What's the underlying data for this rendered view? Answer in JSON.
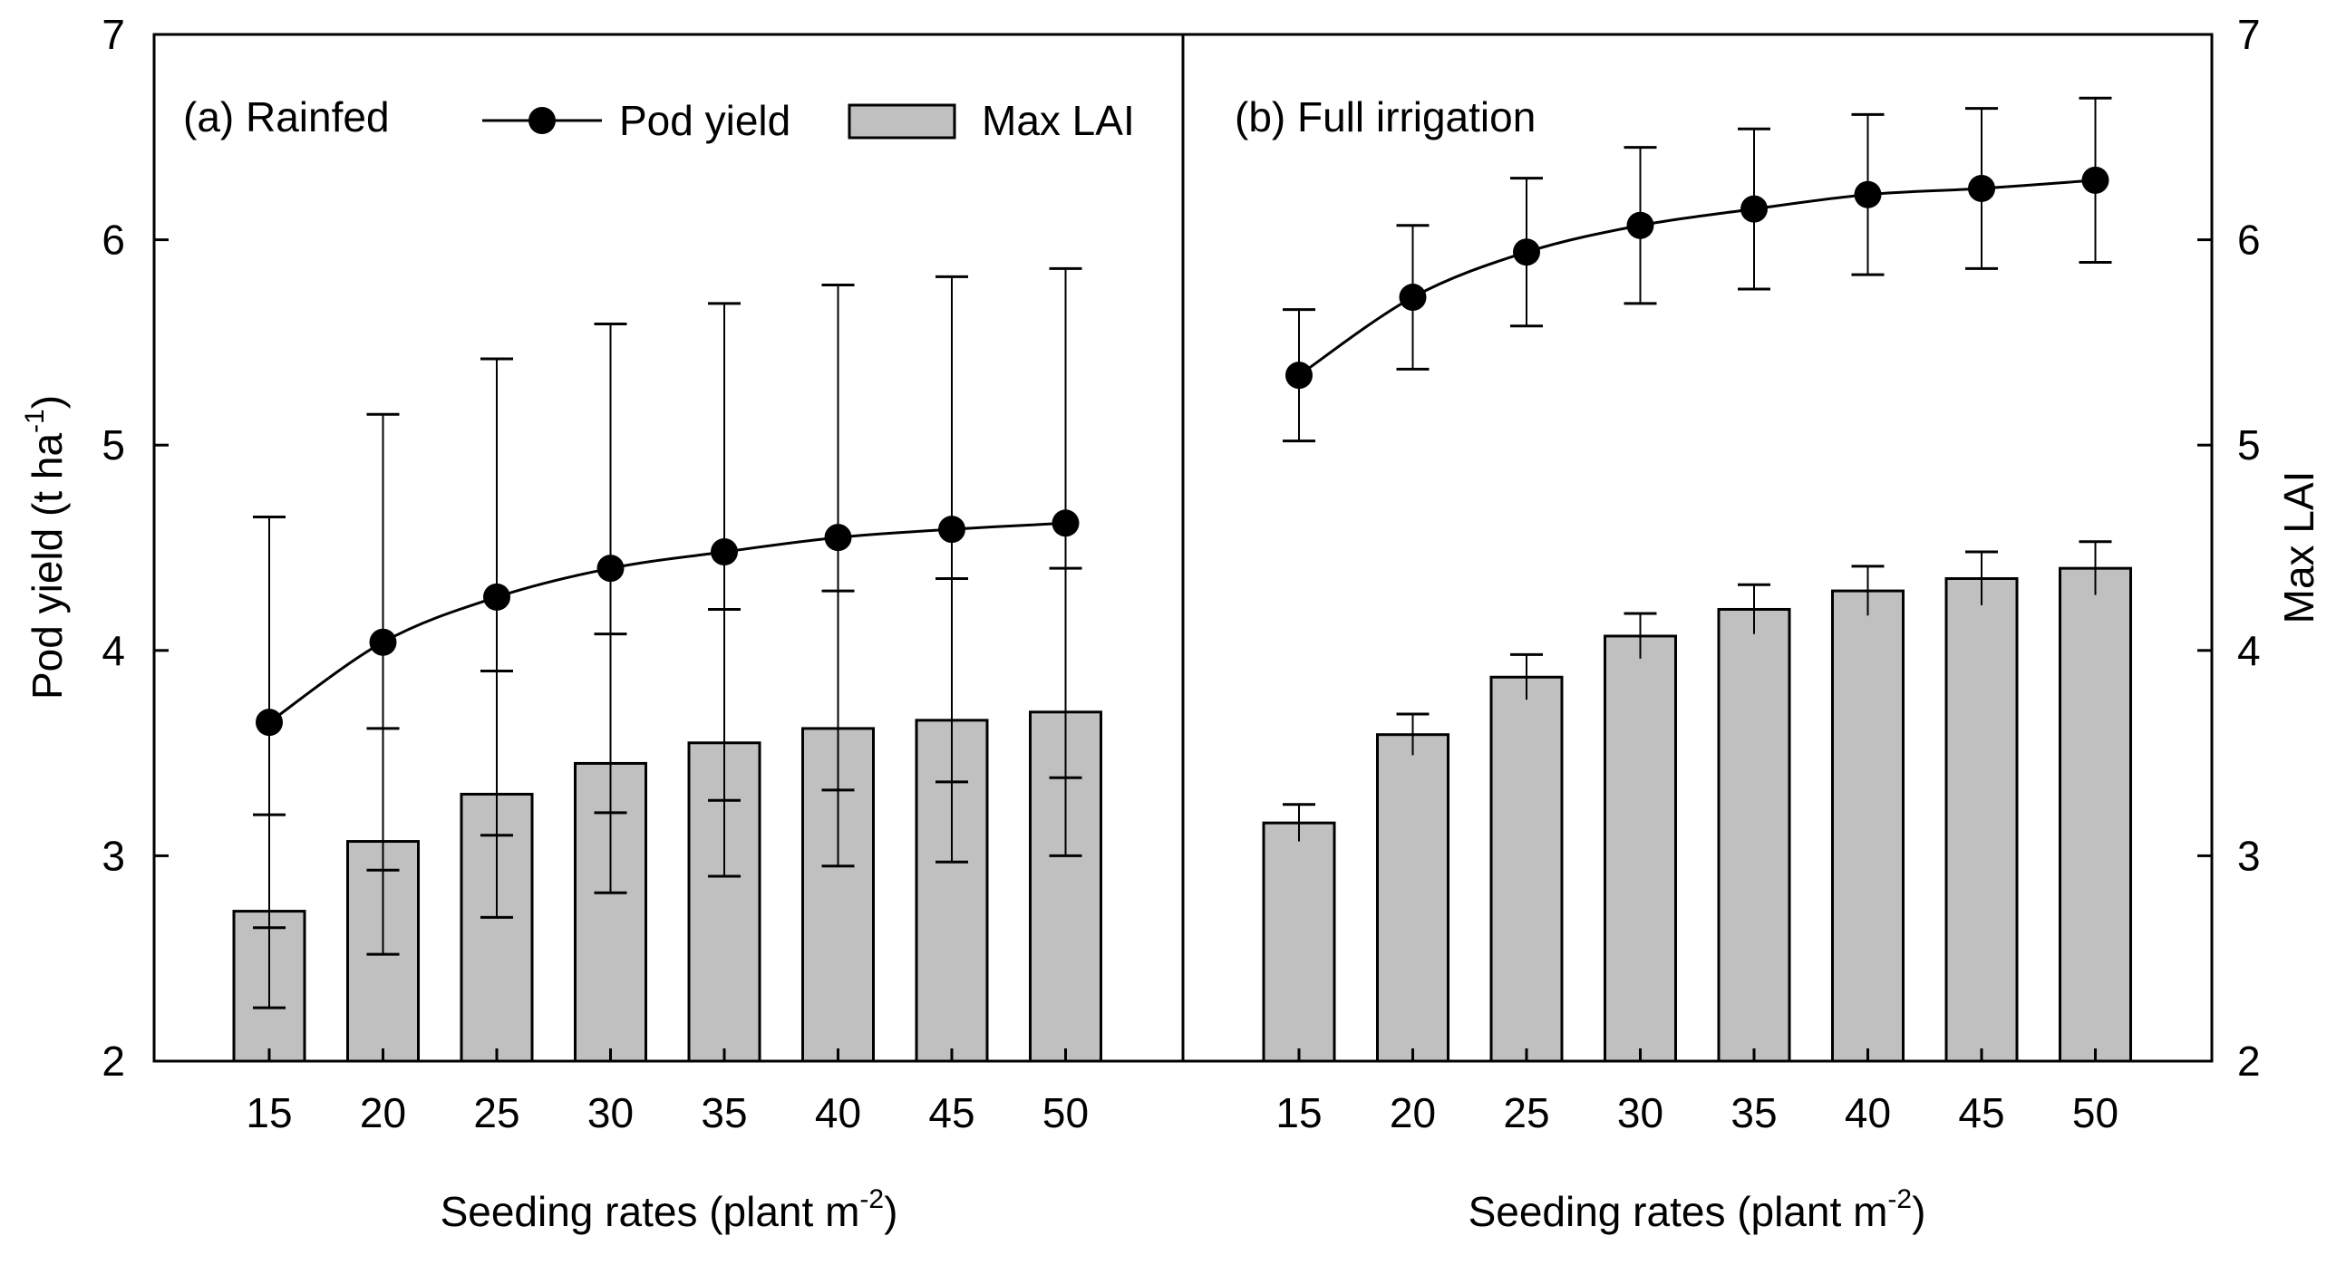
{
  "chart_data": [
    {
      "type": "bar+line",
      "panel_label": "(a) Rainfed",
      "categories": [
        "15",
        "20",
        "25",
        "30",
        "35",
        "40",
        "45",
        "50"
      ],
      "series": [
        {
          "name": "Pod yield",
          "kind": "line",
          "axis": "left",
          "values": [
            3.65,
            4.04,
            4.26,
            4.4,
            4.48,
            4.55,
            4.59,
            4.62
          ],
          "error": [
            1.0,
            1.11,
            1.16,
            1.19,
            1.21,
            1.23,
            1.23,
            1.24
          ]
        },
        {
          "name": "Max LAI",
          "kind": "bar",
          "axis": "right",
          "values": [
            2.73,
            3.07,
            3.3,
            3.45,
            3.55,
            3.62,
            3.66,
            3.7
          ],
          "error": [
            0.47,
            0.55,
            0.6,
            0.63,
            0.65,
            0.67,
            0.69,
            0.7
          ]
        }
      ],
      "xlabel": "Seeding rates (plant m",
      "xlabel_sup": "-2",
      "xlabel_end": ")",
      "ylabel": "Pod yield (t ha",
      "ylabel_sup": "-1",
      "ylabel_end": ")",
      "ylim": [
        2,
        7
      ],
      "yticks": [
        "2",
        "3",
        "4",
        "5",
        "6",
        "7"
      ],
      "legend_position": "top"
    },
    {
      "type": "bar+line",
      "panel_label": "(b) Full irrigation",
      "categories": [
        "15",
        "20",
        "25",
        "30",
        "35",
        "40",
        "45",
        "50"
      ],
      "series": [
        {
          "name": "Pod yield",
          "kind": "line",
          "axis": "left",
          "values": [
            5.34,
            5.72,
            5.94,
            6.07,
            6.15,
            6.22,
            6.25,
            6.29
          ],
          "error": [
            0.32,
            0.35,
            0.36,
            0.38,
            0.39,
            0.39,
            0.39,
            0.4
          ]
        },
        {
          "name": "Max LAI",
          "kind": "bar",
          "axis": "right",
          "values": [
            3.16,
            3.59,
            3.87,
            4.07,
            4.2,
            4.29,
            4.35,
            4.4
          ],
          "error": [
            0.09,
            0.1,
            0.11,
            0.11,
            0.12,
            0.12,
            0.13,
            0.13
          ]
        }
      ],
      "xlabel": "Seeding rates (plant m",
      "xlabel_sup": "-2",
      "xlabel_end": ")",
      "ylabel_right": "Max LAI",
      "ylim": [
        2,
        7
      ],
      "yticks": [
        "2",
        "3",
        "4",
        "5",
        "6",
        "7"
      ]
    }
  ],
  "legend": {
    "line_label": "Pod yield",
    "bar_label": "Max LAI"
  },
  "colors": {
    "bar_fill": "#c0c0c0",
    "line": "#000000",
    "axis": "#000000"
  }
}
